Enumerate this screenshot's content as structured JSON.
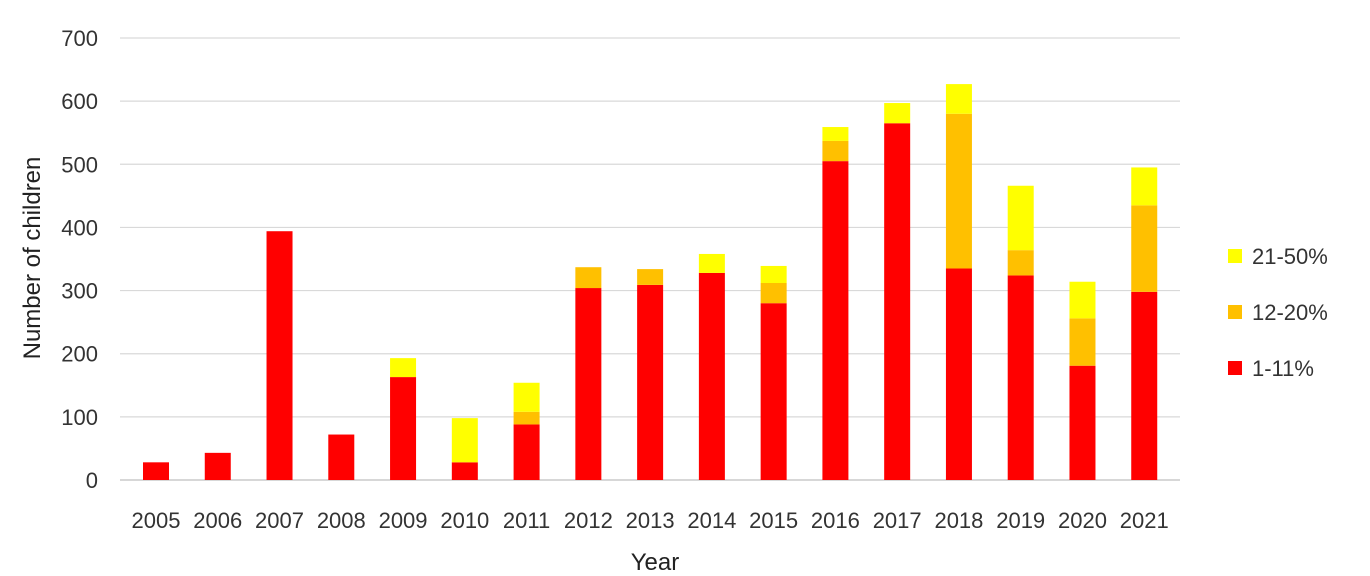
{
  "chart_data": {
    "type": "bar",
    "stacked": true,
    "xlabel": "Year",
    "ylabel": "Number of children",
    "ylim": [
      0,
      700
    ],
    "yticks": [
      0,
      100,
      200,
      300,
      400,
      500,
      600,
      700
    ],
    "grid": true,
    "legend_position": "right",
    "categories": [
      "2005",
      "2006",
      "2007",
      "2008",
      "2009",
      "2010",
      "2011",
      "2012",
      "2013",
      "2014",
      "2015",
      "2016",
      "2017",
      "2018",
      "2019",
      "2020",
      "2021"
    ],
    "series": [
      {
        "name": "1-11%",
        "color": "#ff0000",
        "values": [
          28,
          43,
          394,
          72,
          163,
          28,
          88,
          304,
          309,
          328,
          280,
          505,
          565,
          335,
          324,
          181,
          298
        ]
      },
      {
        "name": "12-20%",
        "color": "#ffc000",
        "values": [
          0,
          0,
          0,
          0,
          0,
          0,
          20,
          33,
          25,
          0,
          32,
          32,
          0,
          245,
          40,
          75,
          137
        ]
      },
      {
        "name": "21-50%",
        "color": "#ffff00",
        "values": [
          0,
          0,
          0,
          0,
          30,
          70,
          46,
          0,
          0,
          30,
          27,
          22,
          32,
          47,
          102,
          58,
          60
        ]
      }
    ],
    "legend_order": [
      "21-50%",
      "12-20%",
      "1-11%"
    ]
  }
}
